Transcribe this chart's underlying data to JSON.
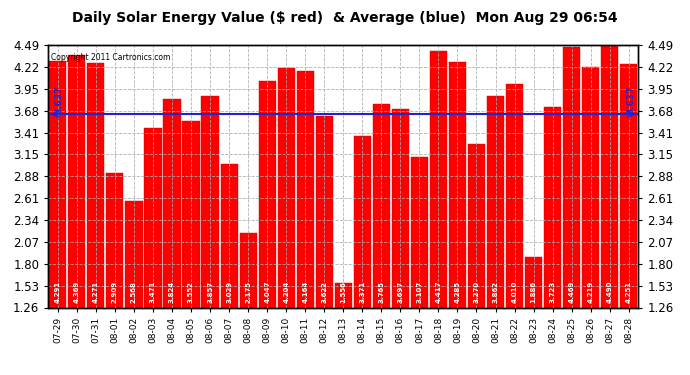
{
  "title": "Daily Solar Energy Value ($ red)  & Average (blue)  Mon Aug 29 06:54",
  "copyright": "Copyright 2011 Cartronics.com",
  "average": 3.637,
  "average_label": "3.637",
  "bar_color": "#ff0000",
  "average_color": "#2222cc",
  "background_color": "#ffffff",
  "plot_bg_color": "#ffffff",
  "grid_color": "#aaaaaa",
  "categories": [
    "07-29",
    "07-30",
    "07-31",
    "08-01",
    "08-02",
    "08-03",
    "08-04",
    "08-05",
    "08-06",
    "08-07",
    "08-08",
    "08-09",
    "08-10",
    "08-11",
    "08-12",
    "08-13",
    "08-14",
    "08-15",
    "08-16",
    "08-17",
    "08-18",
    "08-19",
    "08-20",
    "08-21",
    "08-22",
    "08-23",
    "08-24",
    "08-25",
    "08-26",
    "08-27",
    "08-28"
  ],
  "values": [
    4.291,
    4.369,
    4.271,
    2.909,
    2.568,
    3.471,
    3.824,
    3.552,
    3.857,
    3.029,
    2.175,
    4.047,
    4.204,
    4.164,
    3.622,
    1.556,
    3.371,
    3.765,
    3.697,
    3.107,
    4.417,
    4.285,
    3.27,
    3.862,
    4.01,
    1.886,
    3.723,
    4.469,
    4.219,
    4.49,
    4.251
  ],
  "ylim_min": 1.26,
  "ylim_max": 4.49,
  "yticks": [
    1.26,
    1.53,
    1.8,
    2.07,
    2.34,
    2.61,
    2.88,
    3.15,
    3.41,
    3.68,
    3.95,
    4.22,
    4.49
  ],
  "value_fontsize": 5.0,
  "title_fontsize": 10,
  "ytick_fontsize": 8.5
}
